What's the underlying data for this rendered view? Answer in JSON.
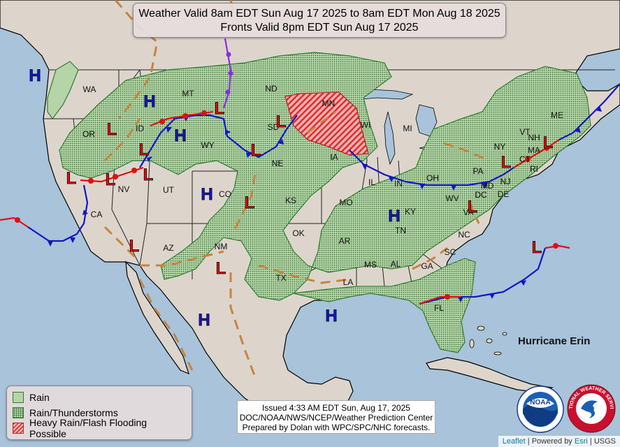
{
  "title": {
    "line1": "Weather Valid 8am EDT Sun Aug 17 2025 to 8am EDT Mon Aug 18 2025",
    "line2": "Fronts Valid 8pm EDT Sun Aug 17 2025"
  },
  "legend": {
    "rain": "Rain",
    "thunderstorms": "Rain/Thunderstorms",
    "flooding": "Heavy Rain/Flash Flooding Possible"
  },
  "issued": {
    "line1": "Issued  4:33 AM EDT  Sun, Aug 17, 2025",
    "line2": "DOC/NOAA/NWS/NCEP/Weather Prediction Center",
    "line3": "Prepared by Dolan with WPC/SPC/NHC forecasts."
  },
  "storm_label": "Hurricane Erin",
  "attribution": {
    "leaflet": "Leaflet",
    "powered": "Powered by",
    "esri": "Esri",
    "usgs": "USGS",
    "sep": "|"
  },
  "logos": {
    "noaa": "NOAA",
    "nws": "NATIONAL WEATHER SERVICE"
  },
  "states": [
    "WA",
    "OR",
    "CA",
    "ID",
    "NV",
    "MT",
    "WY",
    "UT",
    "AZ",
    "CO",
    "NM",
    "ND",
    "SD",
    "NE",
    "KS",
    "OK",
    "TX",
    "MN",
    "IA",
    "MO",
    "AR",
    "LA",
    "WI",
    "IL",
    "MI",
    "IN",
    "OH",
    "KY",
    "TN",
    "MS",
    "AL",
    "GA",
    "FL",
    "SC",
    "NC",
    "VA",
    "WV",
    "PA",
    "NY",
    "VT",
    "NH",
    "ME",
    "MA",
    "CT",
    "RI",
    "NJ",
    "DE",
    "MD",
    "DC"
  ],
  "pressure_centers": {
    "high": "H",
    "low": "L"
  },
  "colors": {
    "ocean": "#a8c3da",
    "land": "#ddd5cc",
    "rain": "#b5d4a8",
    "rain_edge": "#2f7d2f",
    "cold_front": "#1414c8",
    "warm_front": "#e01010",
    "trough": "#c8843c",
    "occluded": "#8a2be2"
  }
}
